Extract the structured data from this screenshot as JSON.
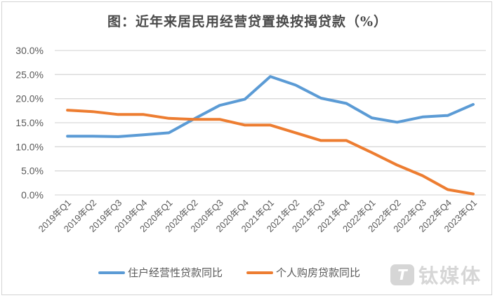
{
  "title": "图：近年来居民用经营贷置换按揭贷款（%）",
  "legend": {
    "series1": "住户经营性贷款同比",
    "series2": "个人购房贷款同比"
  },
  "watermark": {
    "logo": "T",
    "text": "钛媒体"
  },
  "colors": {
    "series1": "#5b9bd5",
    "series2": "#ed7d31",
    "grid": "#d9d9d9",
    "axis_text": "#595959"
  },
  "chart_data": {
    "type": "line",
    "title": "图：近年来居民用经营贷置换按揭贷款（%）",
    "xlabel": "",
    "ylabel": "",
    "ylim": [
      0,
      30
    ],
    "yticks": [
      "0.0%",
      "5.0%",
      "10.0%",
      "15.0%",
      "20.0%",
      "25.0%",
      "30.0%"
    ],
    "grid": true,
    "legend_position": "bottom",
    "categories": [
      "2019年Q1",
      "2019年Q2",
      "2019年Q3",
      "2019年Q4",
      "2020年Q1",
      "2020年Q2",
      "2020年Q3",
      "2020年Q4",
      "2021年Q1",
      "2021年Q2",
      "2021年Q3",
      "2021年Q4",
      "2022年Q1",
      "2022年Q2",
      "2022年Q3",
      "2022年Q4",
      "2023年Q1"
    ],
    "series": [
      {
        "name": "住户经营性贷款同比",
        "color": "#5b9bd5",
        "values": [
          12.2,
          12.2,
          12.1,
          12.5,
          12.9,
          15.8,
          18.6,
          19.9,
          24.6,
          22.8,
          20.1,
          19.0,
          16.0,
          15.1,
          16.2,
          16.5,
          18.8
        ]
      },
      {
        "name": "个人购房贷款同比",
        "color": "#ed7d31",
        "values": [
          17.6,
          17.3,
          16.7,
          16.7,
          15.9,
          15.7,
          15.7,
          14.5,
          14.5,
          12.9,
          11.3,
          11.3,
          8.8,
          6.2,
          4.0,
          1.1,
          0.2
        ]
      }
    ]
  }
}
